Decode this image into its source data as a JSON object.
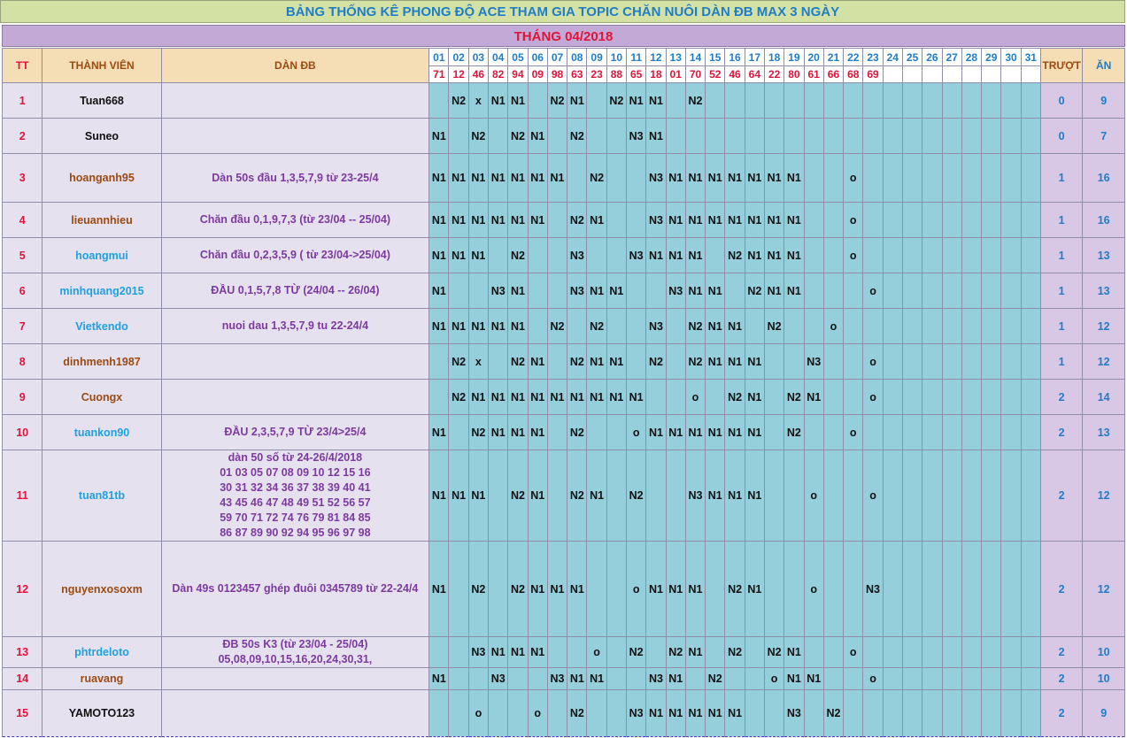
{
  "title": "BẢNG THỐNG KÊ PHONG ĐỘ ACE THAM GIA TOPIC CHĂN NUÔI DÀN ĐB MAX 3 NGÀY",
  "month": "THÁNG 04/2018",
  "headers": {
    "tt": "TT",
    "member": "THÀNH VIÊN",
    "dan": "DÀN ĐB",
    "truot": "TRƯỢT",
    "an": "ĂN"
  },
  "days": [
    "01",
    "02",
    "03",
    "04",
    "05",
    "06",
    "07",
    "08",
    "09",
    "10",
    "11",
    "12",
    "13",
    "14",
    "15",
    "16",
    "17",
    "18",
    "19",
    "20",
    "21",
    "22",
    "23",
    "24",
    "25",
    "26",
    "27",
    "28",
    "29",
    "30",
    "31"
  ],
  "results": [
    "71",
    "12",
    "46",
    "82",
    "94",
    "09",
    "98",
    "63",
    "23",
    "88",
    "65",
    "18",
    "01",
    "70",
    "52",
    "46",
    "64",
    "22",
    "80",
    "61",
    "66",
    "68",
    "69",
    "",
    "",
    "",
    "",
    "",
    "",
    "",
    ""
  ],
  "colors": {
    "title_bg": "#d3e2a4",
    "month_bg": "#c3a9d6",
    "grid_cell": "#96cfdc",
    "accent_blue": "#1f7dc8",
    "accent_red": "#e0133a",
    "brown": "#9b4a12",
    "purple": "#7c3aa0"
  },
  "rows": [
    {
      "tt": "1",
      "name": "Tuan668",
      "name_color": "#111111",
      "dan": [],
      "height": 40,
      "cells": [
        "",
        "N2",
        "x",
        "N1",
        "N1",
        "",
        "N2",
        "N1",
        "",
        "N2",
        "N1",
        "N1",
        "",
        "N2",
        "",
        "",
        "",
        "",
        "",
        "",
        "",
        "",
        ""
      ],
      "truot": "0",
      "an": "9"
    },
    {
      "tt": "2",
      "name": "Suneo",
      "name_color": "#111111",
      "dan": [],
      "height": 40,
      "cells": [
        "N1",
        "",
        "N2",
        "",
        "N2",
        "N1",
        "",
        "N2",
        "",
        "",
        "N3",
        "N1",
        "",
        "",
        "",
        "",
        "",
        "",
        "",
        "",
        "",
        "",
        ""
      ],
      "truot": "0",
      "an": "7"
    },
    {
      "tt": "3",
      "name": "hoanganh95",
      "name_color": "#9b4a12",
      "dan": [
        "Dàn 50s đầu 1,3,5,7,9 từ 23-25/4"
      ],
      "height": 55,
      "cells": [
        "N1",
        "N1",
        "N1",
        "N1",
        "N1",
        "N1",
        "N1",
        "",
        "N2",
        "",
        "",
        "N3",
        "N1",
        "N1",
        "N1",
        "N1",
        "N1",
        "N1",
        "N1",
        "",
        "",
        "o",
        ""
      ],
      "truot": "1",
      "an": "16"
    },
    {
      "tt": "4",
      "name": "lieuannhieu",
      "name_color": "#9b4a12",
      "dan": [
        "Chăn đầu 0,1,9,7,3 (từ 23/04 -- 25/04)"
      ],
      "height": 40,
      "cells": [
        "N1",
        "N1",
        "N1",
        "N1",
        "N1",
        "N1",
        "",
        "N2",
        "N1",
        "",
        "",
        "N3",
        "N1",
        "N1",
        "N1",
        "N1",
        "N1",
        "N1",
        "N1",
        "",
        "",
        "o",
        ""
      ],
      "truot": "1",
      "an": "16"
    },
    {
      "tt": "5",
      "name": "hoangmui",
      "name_color": "#1fa0e0",
      "dan": [
        "Chăn đầu 0,2,3,5,9 ( từ 23/04->25/04)"
      ],
      "height": 40,
      "cells": [
        "N1",
        "N1",
        "N1",
        "",
        "N2",
        "",
        "",
        "N3",
        "",
        "",
        "N3",
        "N1",
        "N1",
        "N1",
        "",
        "N2",
        "N1",
        "N1",
        "N1",
        "",
        "",
        "o",
        ""
      ],
      "truot": "1",
      "an": "13"
    },
    {
      "tt": "6",
      "name": "minhquang2015",
      "name_color": "#1fa0e0",
      "dan": [
        "ĐẦU 0,1,5,7,8 TỪ (24/04 -- 26/04)"
      ],
      "big": true,
      "height": 40,
      "cells": [
        "N1",
        "",
        "",
        "N3",
        "N1",
        "",
        "",
        "N3",
        "N1",
        "N1",
        "",
        "",
        "N3",
        "N1",
        "N1",
        "",
        "N2",
        "N1",
        "N1",
        "",
        "",
        "",
        "o"
      ],
      "truot": "1",
      "an": "13"
    },
    {
      "tt": "7",
      "name": "Vietkendo",
      "name_color": "#1fa0e0",
      "dan": [
        "nuoi dau 1,3,5,7,9 tu 22-24/4"
      ],
      "height": 40,
      "cells": [
        "N1",
        "N1",
        "N1",
        "N1",
        "N1",
        "",
        "N2",
        "",
        "N2",
        "",
        "",
        "N3",
        "",
        "N2",
        "N1",
        "N1",
        "",
        "N2",
        "",
        "",
        "o",
        "",
        ""
      ],
      "truot": "1",
      "an": "12"
    },
    {
      "tt": "8",
      "name": "dinhmenh1987",
      "name_color": "#9b4a12",
      "dan": [],
      "height": 40,
      "cells": [
        "",
        "N2",
        "x",
        "",
        "N2",
        "N1",
        "",
        "N2",
        "N1",
        "N1",
        "",
        "N2",
        "",
        "N2",
        "N1",
        "N1",
        "N1",
        "",
        "",
        "N3",
        "",
        "",
        "o"
      ],
      "truot": "1",
      "an": "12"
    },
    {
      "tt": "9",
      "name": "Cuongx",
      "name_color": "#9b4a12",
      "dan": [],
      "height": 40,
      "cells": [
        "",
        "N2",
        "N1",
        "N1",
        "N1",
        "N1",
        "N1",
        "N1",
        "N1",
        "N1",
        "N1",
        "",
        "",
        "o",
        "",
        "N2",
        "N1",
        "",
        "N2",
        "N1",
        "",
        "",
        "o"
      ],
      "truot": "2",
      "an": "14"
    },
    {
      "tt": "10",
      "name": "tuankon90",
      "name_color": "#1fa0e0",
      "dan": [
        "ĐẦU 2,3,5,7,9 TỪ 23/4>25/4"
      ],
      "height": 40,
      "cells": [
        "N1",
        "",
        "N2",
        "N1",
        "N1",
        "N1",
        "",
        "N2",
        "",
        "",
        "o",
        "N1",
        "N1",
        "N1",
        "N1",
        "N1",
        "N1",
        "",
        "N2",
        "",
        "",
        "o",
        ""
      ],
      "truot": "2",
      "an": "13"
    },
    {
      "tt": "11",
      "name": "tuan81tb",
      "name_color": "#1fa0e0",
      "dan": [
        "dàn 50 số từ 24-26/4/2018",
        "01 03 05 07 08 09 10 12 15 16",
        "30 31 32 34 36 37 38 39 40 41",
        "43 45 46 47 48 49 51 52 56 57",
        "59 70 71 72 74 76 79 81 84 85",
        "86 87 89 90 92 94 95 96 97 98"
      ],
      "height": 102,
      "cells": [
        "N1",
        "N1",
        "N1",
        "",
        "N2",
        "N1",
        "",
        "N2",
        "N1",
        "",
        "N2",
        "",
        "",
        "N3",
        "N1",
        "N1",
        "N1",
        "",
        "",
        "o",
        "",
        "",
        "o"
      ],
      "truot": "2",
      "an": "12"
    },
    {
      "tt": "12",
      "name": "nguyenxosoxm",
      "name_color": "#9b4a12",
      "dan": [
        "Dàn 49s 0123457 ghép đuôi 0345789 từ 22-24/4"
      ],
      "height": 108,
      "cells": [
        "N1",
        "",
        "N2",
        "",
        "N2",
        "N1",
        "N1",
        "N1",
        "",
        "",
        "o",
        "N1",
        "N1",
        "N1",
        "",
        "N2",
        "N1",
        "",
        "",
        "o",
        "",
        "",
        "N3"
      ],
      "truot": "2",
      "an": "12"
    },
    {
      "tt": "13",
      "name": "phtrdeloto",
      "name_color": "#1fa0e0",
      "dan": [
        "ĐB 50s K3 (từ 23/04 - 25/04)",
        "05,08,09,10,15,16,20,24,30,31,"
      ],
      "height": 35,
      "cells": [
        "",
        "",
        "N3",
        "N1",
        "N1",
        "N1",
        "",
        "",
        "o",
        "",
        "N2",
        "",
        "N2",
        "N1",
        "",
        "N2",
        "",
        "N2",
        "N1",
        "",
        "",
        "o",
        ""
      ],
      "truot": "2",
      "an": "10"
    },
    {
      "tt": "14",
      "name": "ruavang",
      "name_color": "#9b4a12",
      "dan": [],
      "height": 25,
      "cells": [
        "N1",
        "",
        "",
        "N3",
        "",
        "",
        "N3",
        "N1",
        "N1",
        "",
        "",
        "N3",
        "N1",
        "",
        "N2",
        "",
        "",
        "o",
        "N1",
        "N1",
        "",
        "",
        "o"
      ],
      "truot": "2",
      "an": "10"
    },
    {
      "tt": "15",
      "name": "YAMOTO123",
      "name_color": "#111111",
      "dan": [],
      "height": 53,
      "cells": [
        "",
        "",
        "o",
        "",
        "",
        "o",
        "",
        "N2",
        "",
        "",
        "N3",
        "N1",
        "N1",
        "N1",
        "N1",
        "N1",
        "",
        "",
        "N3",
        "",
        "N2",
        "",
        ""
      ],
      "truot": "2",
      "an": "9"
    }
  ]
}
